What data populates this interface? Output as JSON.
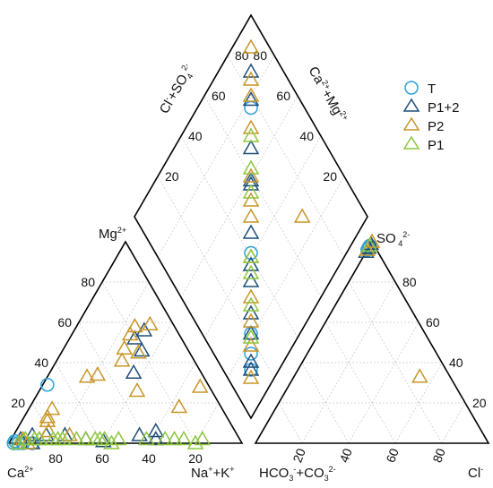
{
  "chart_data": {
    "type": "scatter",
    "subtype": "piper-diagram",
    "ticks": [
      "20",
      "40",
      "60",
      "80"
    ],
    "axis_labels": {
      "cation_left": "Ca²⁺",
      "cation_right": "Na⁺+K⁺",
      "cation_top": "Mg²⁺",
      "anion_left": "HCO₃⁻+CO₃²⁻",
      "anion_right": "Cl⁻",
      "anion_top": "SO₄²⁻",
      "diamond_left": "Cl⁻+SO₄²⁻",
      "diamond_right": "Ca²⁺+Mg²⁺"
    },
    "legend": {
      "position": "top-right",
      "entries": [
        "T",
        "P1+2",
        "P2",
        "P1"
      ]
    },
    "series": [
      {
        "name": "T",
        "marker": "circle",
        "color": "#2e9fd6",
        "cations": [
          [
            2,
            29
          ],
          [
            2,
            1
          ],
          [
            2,
            0
          ],
          [
            4,
            0
          ],
          [
            6,
            0
          ],
          [
            10,
            0
          ]
        ],
        "anions": [
          [
            0,
            96
          ],
          [
            0,
            98
          ],
          [
            0,
            97
          ]
        ],
        "diamond": [
          [
            77,
            77
          ],
          [
            41,
            41
          ],
          [
            21,
            21
          ],
          [
            16,
            16
          ],
          [
            12,
            12
          ]
        ]
      },
      {
        "name": "P1+2",
        "marker": "triangle",
        "color": "#1f4e79",
        "cations": [
          [
            30,
            56
          ],
          [
            28,
            52
          ],
          [
            34,
            46
          ],
          [
            36,
            35
          ],
          [
            62,
            2
          ],
          [
            54,
            4
          ],
          [
            60,
            6
          ],
          [
            40,
            1
          ],
          [
            22,
            4
          ],
          [
            14,
            4
          ],
          [
            8,
            4
          ],
          [
            4,
            2
          ],
          [
            32,
            2
          ],
          [
            10,
            0
          ]
        ],
        "anions": [
          [
            0,
            95
          ],
          [
            0,
            97
          ],
          [
            0,
            99
          ]
        ],
        "diamond": [
          [
            86,
            86
          ],
          [
            79,
            79
          ],
          [
            67,
            67
          ],
          [
            59,
            59
          ],
          [
            58,
            58
          ],
          [
            46,
            46
          ],
          [
            38,
            38
          ],
          [
            34,
            34
          ],
          [
            26,
            26
          ],
          [
            21,
            21
          ],
          [
            14,
            14
          ],
          [
            12,
            12
          ]
        ]
      },
      {
        "name": "P2",
        "marker": "triangle",
        "color": "#c89628",
        "cations": [
          [
            31,
            59
          ],
          [
            25,
            58
          ],
          [
            25,
            54
          ],
          [
            26,
            47
          ],
          [
            33,
            45
          ],
          [
            28,
            41
          ],
          [
            21,
            34
          ],
          [
            17,
            33
          ],
          [
            68,
            28
          ],
          [
            64,
            18
          ],
          [
            42,
            26
          ],
          [
            10,
            17
          ],
          [
            10,
            13
          ],
          [
            11,
            11
          ],
          [
            8,
            0
          ],
          [
            12,
            2
          ],
          [
            14,
            6
          ],
          [
            5,
            2
          ],
          [
            24,
            4
          ]
        ],
        "anions": [
          [
            54,
            33
          ],
          [
            0,
            96
          ],
          [
            0,
            100
          ]
        ],
        "diamond": [
          [
            92,
            92
          ],
          [
            84,
            84
          ],
          [
            80,
            80
          ],
          [
            72,
            72
          ],
          [
            60,
            60
          ],
          [
            54,
            54
          ],
          [
            50,
            50
          ],
          [
            40,
            40
          ],
          [
            30,
            30
          ],
          [
            24,
            24
          ],
          [
            18,
            18
          ],
          [
            10,
            10
          ],
          [
            28,
            72
          ]
        ]
      },
      {
        "name": "P1",
        "marker": "triangle",
        "color": "#8dc63f",
        "cations": [
          [
            82,
            2
          ],
          [
            80,
            0
          ],
          [
            74,
            2
          ],
          [
            70,
            2
          ],
          [
            66,
            2
          ],
          [
            58,
            2
          ],
          [
            46,
            2
          ],
          [
            44,
            0
          ],
          [
            40,
            2
          ],
          [
            38,
            2
          ],
          [
            36,
            2
          ],
          [
            32,
            2
          ],
          [
            28,
            2
          ],
          [
            22,
            2
          ],
          [
            20,
            2
          ],
          [
            18,
            2
          ],
          [
            12,
            2
          ],
          [
            10,
            2
          ],
          [
            6,
            2
          ],
          [
            4,
            0
          ]
        ],
        "anions": [
          [
            0,
            98
          ]
        ],
        "diamond": [
          [
            70,
            70
          ],
          [
            62,
            62
          ],
          [
            56,
            56
          ],
          [
            40,
            40
          ],
          [
            36,
            36
          ],
          [
            28,
            28
          ],
          [
            20,
            20
          ]
        ]
      }
    ]
  }
}
